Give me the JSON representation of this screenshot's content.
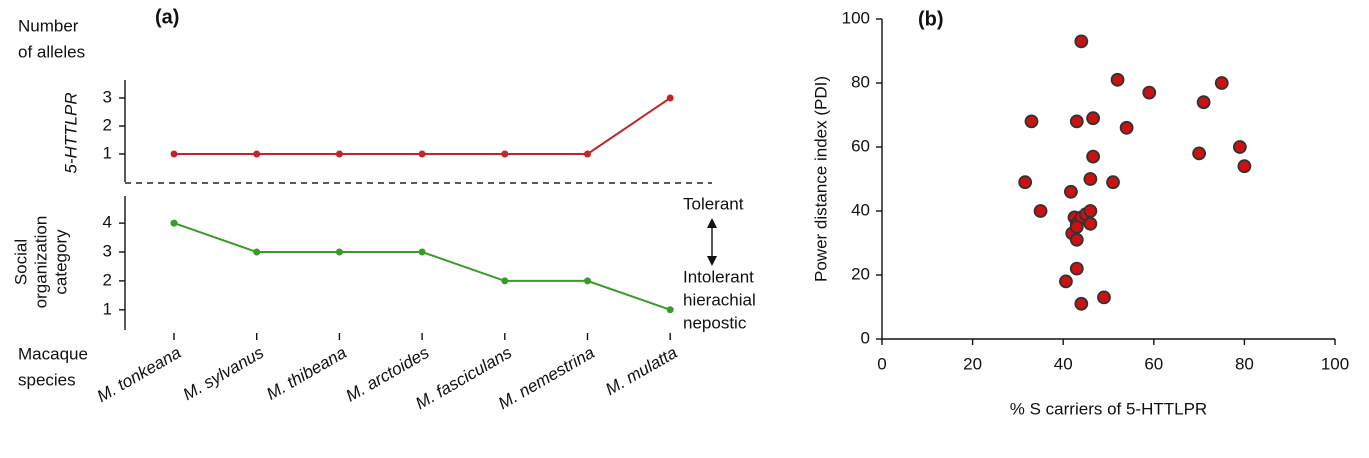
{
  "chart_data": [
    {
      "type": "line",
      "title": "(a)",
      "annotation_lines": [
        "Number",
        "of alleles"
      ],
      "ylabel": "5-HTTLPR",
      "values": [
        1,
        1,
        1,
        1,
        1,
        1,
        3
      ],
      "color": "#c0272d",
      "ylim": [
        0,
        3.5
      ],
      "yticks": [
        1,
        2,
        3
      ]
    },
    {
      "type": "line",
      "ylabel_lines": [
        "Social",
        "organization",
        "category"
      ],
      "xlabel_lines": [
        "Macaque",
        "species"
      ],
      "categories": [
        "M. tonkeana",
        "M. sylvanus",
        "M. thibeana",
        "M. arctoides",
        "M. fasciculans",
        "M. nemestrina",
        "M. mulatta"
      ],
      "values": [
        4,
        3,
        3,
        3,
        2,
        2,
        1
      ],
      "color": "#3a9a2a",
      "ylim": [
        0.3,
        4.8
      ],
      "yticks": [
        1,
        2,
        3,
        4
      ],
      "annotation_top": "Tolerant",
      "annotation_bottom_lines": [
        "Intolerant",
        "hierachial",
        "nepostic"
      ]
    },
    {
      "type": "scatter",
      "title": "(b)",
      "xlabel": "% S carriers of 5-HTTLPR",
      "ylabel": "Power distance index (PDI)",
      "x": [
        31.6,
        33,
        35,
        40.6,
        41.7,
        42.5,
        42,
        43,
        44,
        45,
        46,
        46,
        43,
        43,
        43,
        44,
        43,
        44,
        46.6,
        46.6,
        46,
        49,
        51,
        52,
        54,
        59,
        70,
        71,
        75,
        79,
        80
      ],
      "y": [
        49,
        68,
        40,
        18,
        46,
        38,
        33,
        36,
        38,
        39,
        40,
        36,
        35,
        22,
        31,
        93,
        68,
        11,
        69,
        57,
        50,
        13,
        49,
        81,
        66,
        77,
        58,
        74,
        80,
        60,
        54
      ],
      "color": "#cc1111",
      "xlim": [
        0,
        100
      ],
      "ylim": [
        0,
        100
      ],
      "xticks": [
        0,
        20,
        40,
        60,
        80,
        100
      ],
      "yticks": [
        0,
        20,
        40,
        60,
        80,
        100
      ]
    }
  ]
}
